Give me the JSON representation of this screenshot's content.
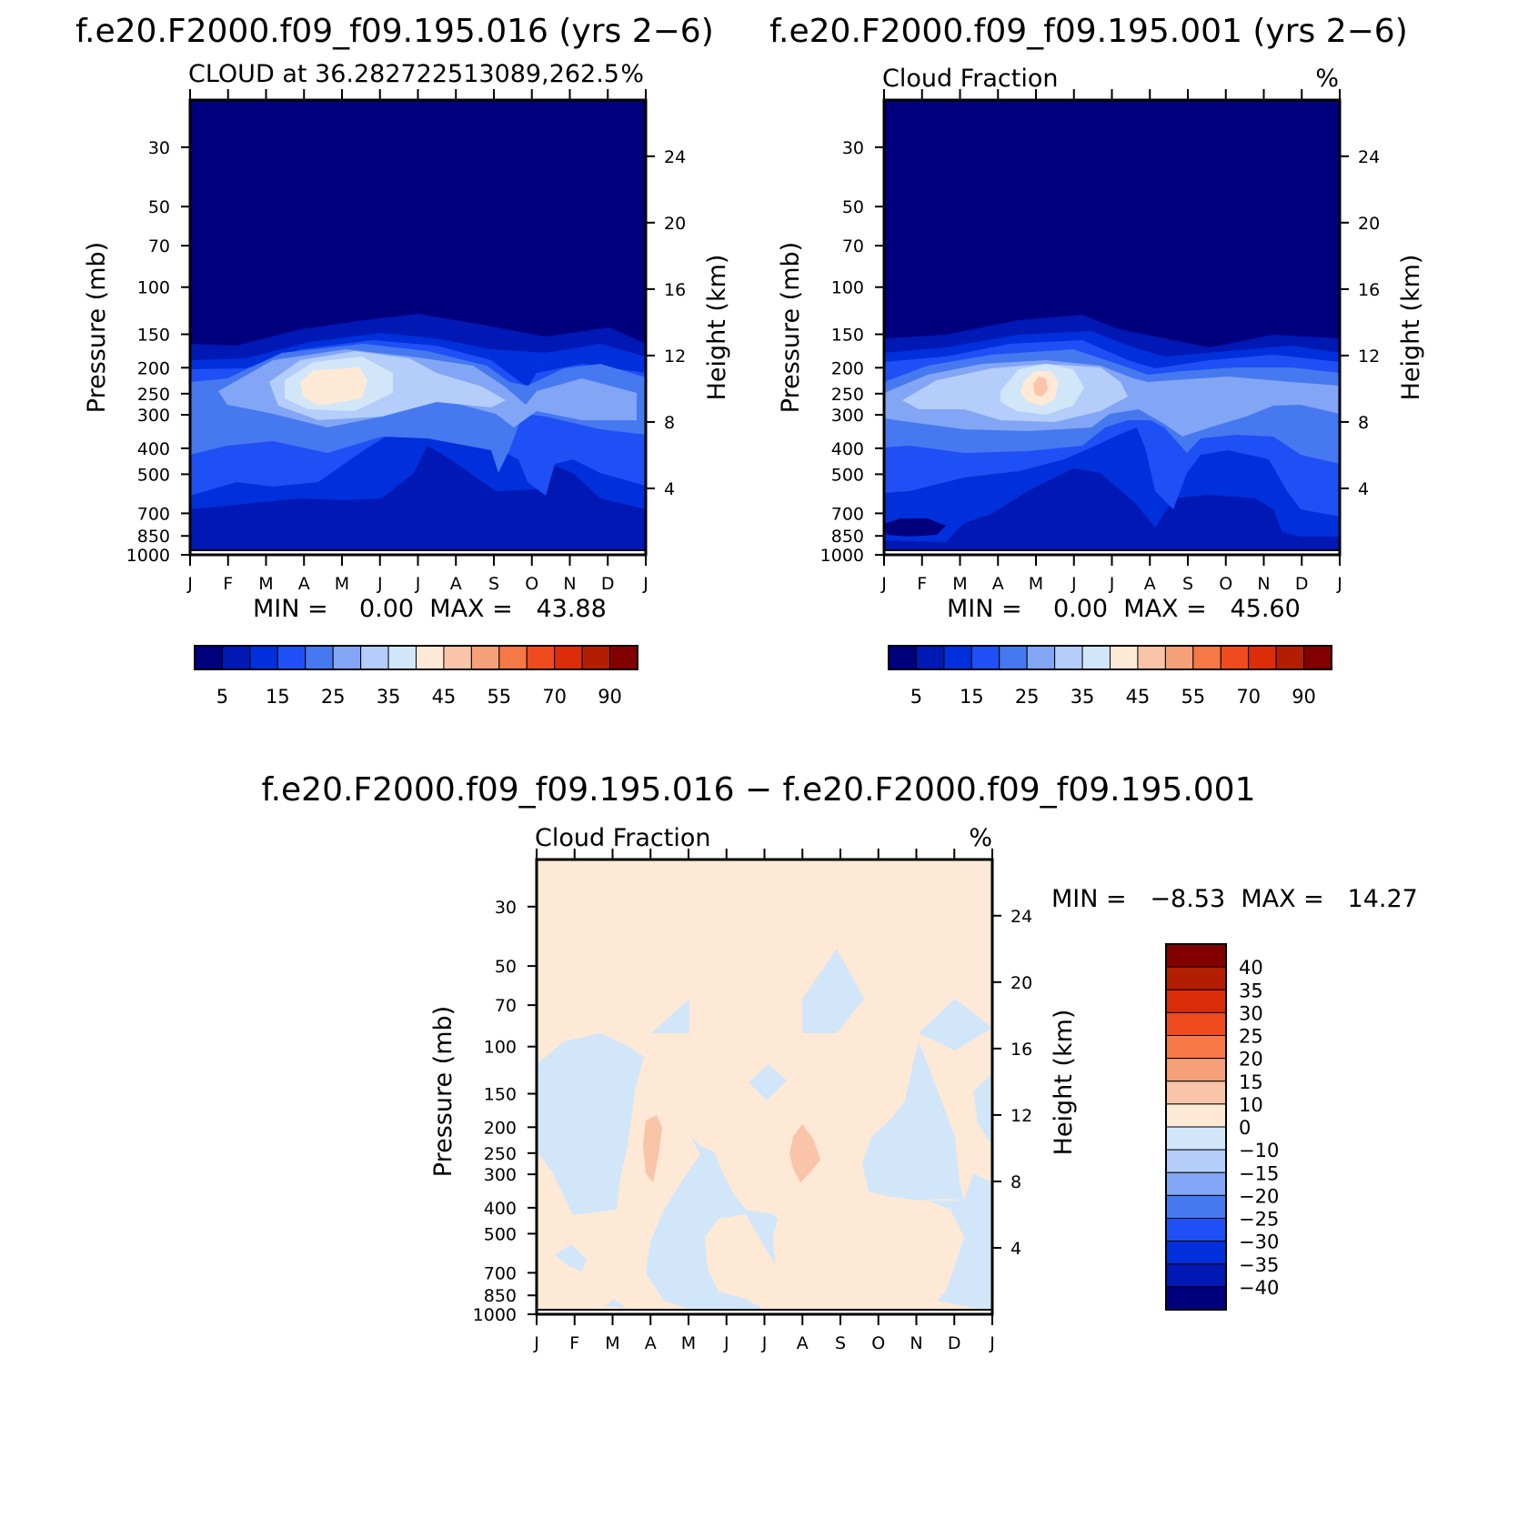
{
  "panels": [
    {
      "id": "p1",
      "main_title": "f.e20.F2000.f09_f09.195.016 (yrs 2−6)",
      "left_title": "CLOUD at 36.282722513089,262.5",
      "right_title": "%",
      "minmax": "MIN =    0.00  MAX =   43.88",
      "contour": "cloud16"
    },
    {
      "id": "p2",
      "main_title": "f.e20.F2000.f09_f09.195.001 (yrs 2−6)",
      "left_title": "Cloud Fraction",
      "right_title": "%",
      "minmax": "MIN =    0.00  MAX =   45.60",
      "contour": "cloud01"
    },
    {
      "id": "p3",
      "main_title": "f.e20.F2000.f09_f09.195.016 − f.e20.F2000.f09_f09.195.001",
      "left_title": "Cloud Fraction",
      "right_title": "%",
      "minmax": "MIN =   −8.53  MAX =   14.27",
      "contour": "diff"
    }
  ],
  "chart_data": {
    "type": "heatmap",
    "x_labels": [
      "J",
      "F",
      "M",
      "A",
      "M",
      "J",
      "J",
      "A",
      "S",
      "O",
      "N",
      "D",
      "J"
    ],
    "pressure_ticks": [
      30,
      50,
      70,
      100,
      150,
      200,
      250,
      300,
      400,
      500,
      700,
      850,
      1000
    ],
    "pressure_range_mb": [
      1000,
      20
    ],
    "height_ticks_km": [
      4,
      8,
      12,
      16,
      20,
      24
    ],
    "ylabel_left": "Pressure (mb)",
    "ylabel_right": "Height (km)",
    "scale": "log-pressure",
    "field_levels": [
      "5",
      "15",
      "25",
      "35",
      "45",
      "55",
      "70",
      "90"
    ],
    "field_colors": [
      "#00007f",
      "#0018b4",
      "#0030dc",
      "#1e50f5",
      "#4678f0",
      "#82a5f5",
      "#b4cdfa",
      "#d2e6fa",
      "#fde9d6",
      "#f9c4a8",
      "#f5a078",
      "#f57846",
      "#f04b1e",
      "#dc2d0a",
      "#b41e00",
      "#820000"
    ],
    "diff_levels": [
      "40",
      "35",
      "30",
      "25",
      "20",
      "15",
      "10",
      "0",
      "−10",
      "−15",
      "−20",
      "−25",
      "−30",
      "−35",
      "−40"
    ],
    "diff_colors": [
      "#820000",
      "#b41e00",
      "#dc2d0a",
      "#f04b1e",
      "#f57846",
      "#f5a078",
      "#f9c4a8",
      "#fde9d6",
      "#d2e6fa",
      "#b4cdfa",
      "#82a5f5",
      "#4678f0",
      "#1e50f5",
      "#0030dc",
      "#0018b4",
      "#00007f"
    ],
    "series": [
      {
        "name": "f.e20.F2000.f09_f09.195.016",
        "min": 0.0,
        "max": 43.88
      },
      {
        "name": "f.e20.F2000.f09_f09.195.001",
        "min": 0.0,
        "max": 45.6
      },
      {
        "name": "f.e20.F2000.f09_f09.195.016 − f.e20.F2000.f09_f09.195.001",
        "min": -8.53,
        "max": 14.27
      }
    ]
  }
}
